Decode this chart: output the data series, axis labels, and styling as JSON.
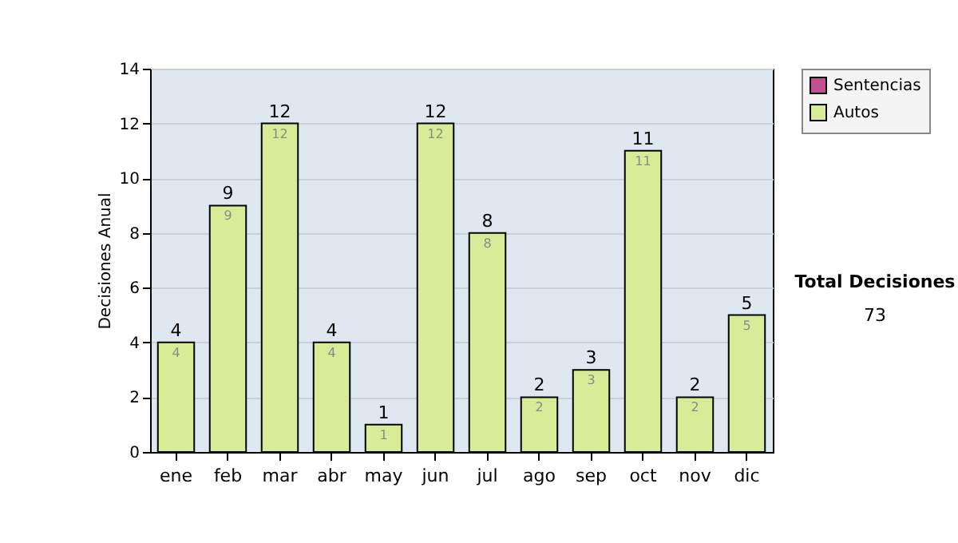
{
  "chart_data": {
    "type": "bar",
    "stacked": true,
    "categories": [
      "ene",
      "feb",
      "mar",
      "abr",
      "may",
      "jun",
      "jul",
      "ago",
      "sep",
      "oct",
      "nov",
      "dic"
    ],
    "series": [
      {
        "name": "Sentencias",
        "color": "#c0508f",
        "values": [
          0,
          0,
          0,
          0,
          0,
          0,
          0,
          0,
          0,
          0,
          0,
          0
        ]
      },
      {
        "name": "Autos",
        "color": "#d8ec98",
        "values": [
          4,
          9,
          12,
          4,
          1,
          12,
          8,
          2,
          3,
          11,
          2,
          5
        ],
        "value_labels": [
          "4",
          "9",
          "12",
          "4",
          "1",
          "12",
          "8",
          "2",
          "3",
          "11",
          "2",
          "5"
        ]
      }
    ],
    "totals": [
      "4",
      "9",
      "12",
      "4",
      "1",
      "12",
      "8",
      "2",
      "3",
      "11",
      "2",
      "5"
    ],
    "ylabel": "Decisiones Anual",
    "ylim": [
      0,
      14
    ],
    "yticks": [
      0,
      2,
      4,
      6,
      8,
      10,
      12,
      14
    ],
    "grid": "y",
    "legend": "right",
    "annotations": [
      "Total Decisiones",
      "73"
    ]
  }
}
